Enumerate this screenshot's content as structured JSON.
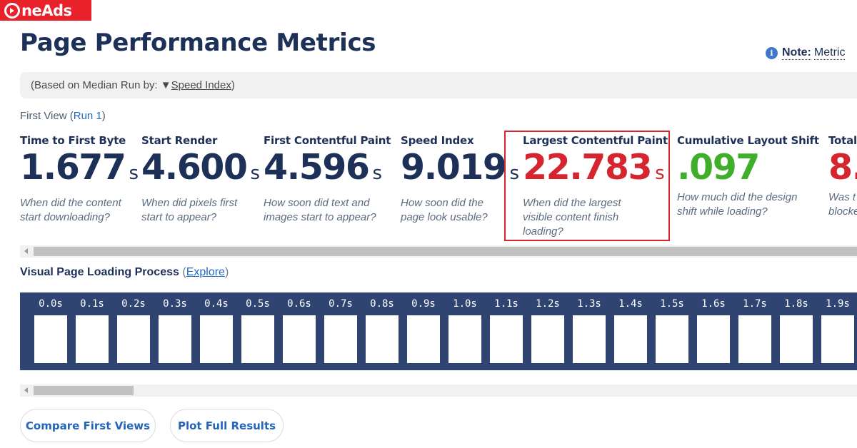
{
  "logo": {
    "text": "neAds"
  },
  "page_title": "Page Performance Metrics",
  "note": {
    "label": "Note:",
    "text": "Metric"
  },
  "median_bar": {
    "prefix": "(Based on Median Run by: ▼ ",
    "link": "Speed Index",
    "suffix": ")"
  },
  "first_view": {
    "prefix": "First View (",
    "run_link": "Run 1",
    "suffix": ")"
  },
  "metrics": [
    {
      "label": "Time to First Byte",
      "value": "1.677",
      "unit": "s",
      "desc": "When did the content start downloading?",
      "color": "#1d3057"
    },
    {
      "label": "Start Render",
      "value": "4.600",
      "unit": "s",
      "desc": "When did pixels first start to appear?",
      "color": "#1d3057"
    },
    {
      "label": "First Contentful Paint",
      "value": "4.596",
      "unit": "s",
      "desc": "How soon did text and images start to appear?",
      "color": "#1d3057"
    },
    {
      "label": "Speed Index",
      "value": "9.019",
      "unit": "s",
      "desc": "How soon did the page look usable?",
      "color": "#1d3057"
    },
    {
      "label": "Largest Contentful Paint",
      "value": "22.783",
      "unit": "s",
      "desc": "When did the largest visible content finish loading?",
      "color": "#d5262f"
    },
    {
      "label": "Cumulative Layout Shift",
      "value": ".097",
      "unit": "",
      "desc": "How much did the design shift while loading?",
      "color": "#3fae2a"
    },
    {
      "label": "Total",
      "value": "8.",
      "unit": "",
      "desc": "Was t blocke",
      "color": "#d5262f"
    }
  ],
  "visual_section": {
    "title": "Visual Page Loading Process",
    "open_paren": "(",
    "explore_link": "Explore",
    "close_paren": ")"
  },
  "filmstrip_times": [
    "0.0s",
    "0.1s",
    "0.2s",
    "0.3s",
    "0.4s",
    "0.5s",
    "0.6s",
    "0.7s",
    "0.8s",
    "0.9s",
    "1.0s",
    "1.1s",
    "1.2s",
    "1.3s",
    "1.4s",
    "1.5s",
    "1.6s",
    "1.7s",
    "1.8s",
    "1.9s"
  ],
  "buttons": {
    "compare": "Compare First Views",
    "plot": "Plot Full Results"
  },
  "colors": {
    "navy": "#1d3057",
    "red": "#d5262f",
    "green": "#3fae2a",
    "link": "#2368c4",
    "filmstrip_bg": "#2f4471",
    "logo_bg": "#e8212b"
  }
}
